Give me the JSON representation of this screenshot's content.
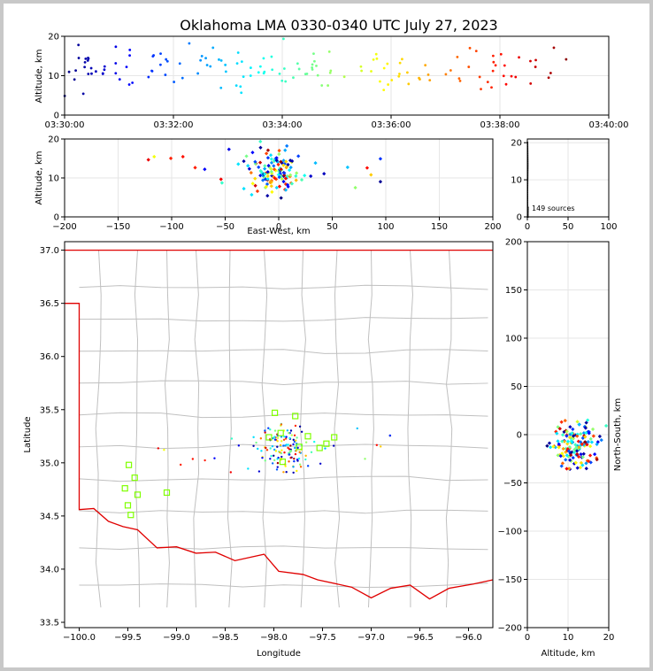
{
  "title": "Oklahoma LMA 0330-0340 UTC July 27, 2023",
  "source_count_label": "149 sources",
  "colors": {
    "county": "#c0c0c0",
    "state": "#e00000",
    "station": "#7fff00",
    "grid": "#e6e6e6"
  },
  "chart_data": [
    {
      "id": "time-altitude",
      "type": "scatter",
      "xlabel": "",
      "ylabel": "Altitude, km",
      "xlim": [
        0,
        600
      ],
      "ylim": [
        0,
        20
      ],
      "xticks": [
        0,
        120,
        240,
        360,
        480,
        600
      ],
      "xtick_labels": [
        "03:30:00",
        "03:32:00",
        "03:34:00",
        "03:36:00",
        "03:38:00",
        "03:40:00"
      ],
      "yticks": [
        0,
        10,
        20
      ],
      "color_by": "time"
    },
    {
      "id": "ew-altitude",
      "type": "scatter",
      "xlabel": "East-West, km",
      "ylabel": "Altitude, km",
      "xlim": [
        -200,
        200
      ],
      "ylim": [
        0,
        20
      ],
      "xticks": [
        -200,
        -150,
        -100,
        -50,
        0,
        50,
        100,
        150,
        200
      ],
      "yticks": [
        0,
        10,
        20
      ]
    },
    {
      "id": "altitude-histogram",
      "type": "scatter",
      "xlim": [
        0,
        100
      ],
      "ylim": [
        0,
        21
      ],
      "xticks": [
        0,
        50,
        100
      ],
      "yticks": [
        0,
        10,
        20
      ]
    },
    {
      "id": "plan-view",
      "type": "scatter",
      "xlabel": "Longitude",
      "ylabel": "Latitude",
      "xlim": [
        -100.15,
        -95.75
      ],
      "ylim": [
        33.45,
        37.08
      ],
      "xticks": [
        -100.0,
        -99.5,
        -99.0,
        -98.5,
        -98.0,
        -97.5,
        -97.0,
        -96.5,
        -96.0
      ],
      "xtick_labels": [
        "−100.0",
        "−99.5",
        "−99.0",
        "−98.5",
        "−98.0",
        "−97.5",
        "−97.0",
        "−96.5",
        "−96.0"
      ],
      "yticks": [
        33.5,
        34.0,
        34.5,
        35.0,
        35.5,
        36.0,
        36.5,
        37.0
      ],
      "stations": [
        [
          -99.53,
          34.76
        ],
        [
          -99.49,
          34.98
        ],
        [
          -99.43,
          34.86
        ],
        [
          -99.4,
          34.7
        ],
        [
          -99.5,
          34.6
        ],
        [
          -99.47,
          34.51
        ],
        [
          -99.1,
          34.72
        ],
        [
          -98.05,
          35.24
        ],
        [
          -97.99,
          35.47
        ],
        [
          -97.93,
          35.28
        ],
        [
          -97.91,
          35.01
        ],
        [
          -97.78,
          35.44
        ],
        [
          -97.74,
          35.15
        ],
        [
          -97.65,
          35.25
        ],
        [
          -97.53,
          35.14
        ],
        [
          -97.46,
          35.18
        ],
        [
          -97.38,
          35.24
        ]
      ]
    },
    {
      "id": "altitude-ns",
      "type": "scatter",
      "xlabel": "Altitude, km",
      "ylabel": "North-South, km",
      "xlim": [
        0,
        20
      ],
      "ylim": [
        -200,
        200
      ],
      "xticks": [
        0,
        10,
        20
      ],
      "yticks": [
        -200,
        -150,
        -100,
        -50,
        0,
        50,
        100,
        150,
        200
      ]
    }
  ]
}
